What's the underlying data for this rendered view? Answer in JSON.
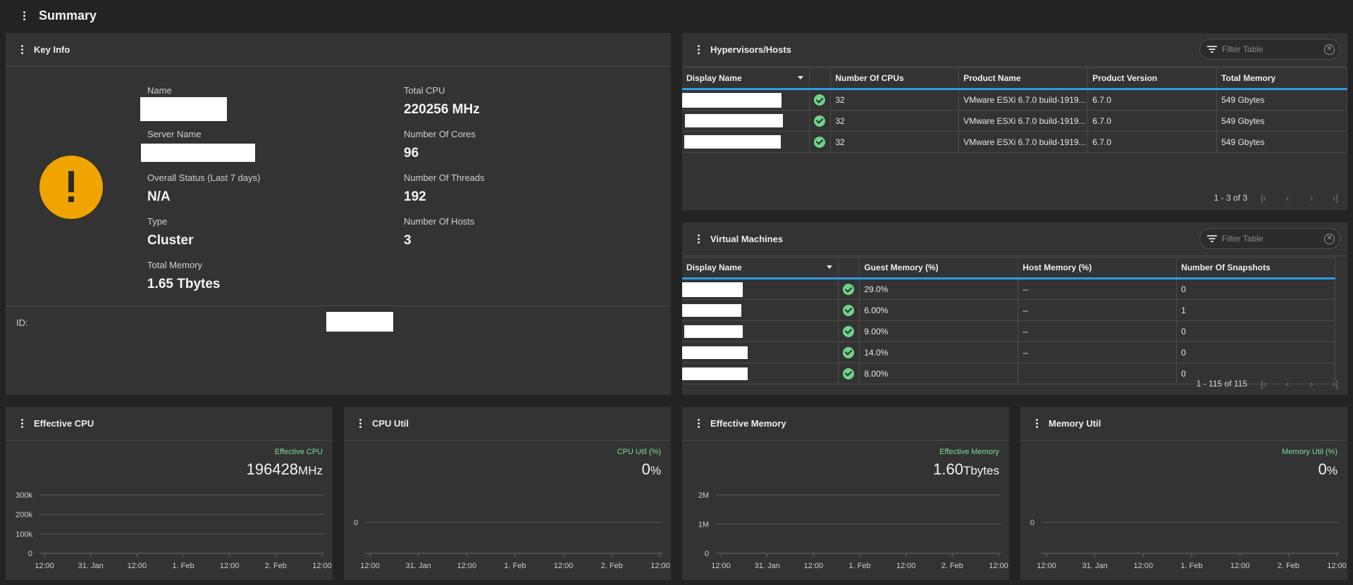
{
  "page": {
    "title": "Summary"
  },
  "key_info": {
    "title": "Key Info",
    "name_label": "Name",
    "server_name_label": "Server Name",
    "status_label": "Overall Status (Last 7 days)",
    "status_value": "N/A",
    "type_label": "Type",
    "type_value": "Cluster",
    "memory_label": "Total Memory",
    "memory_value": "1.65 Tbytes",
    "total_cpu_label": "Total CPU",
    "total_cpu_value": "220256 MHz",
    "cores_label": "Number Of Cores",
    "cores_value": "96",
    "threads_label": "Number Of Threads",
    "threads_value": "192",
    "hosts_label": "Number Of Hosts",
    "hosts_value": "3",
    "id_label": "ID:"
  },
  "hosts": {
    "title": "Hypervisors/Hosts",
    "filter_placeholder": "Filter Table",
    "columns": [
      "Display Name",
      "Number Of CPUs",
      "Product Name",
      "Product Version",
      "Total Memory"
    ],
    "rows": [
      {
        "cpus": "32",
        "product": "VMware ESXi 6.7.0 build-1919...",
        "version": "6.7.0",
        "memory": "549 Gbytes"
      },
      {
        "cpus": "32",
        "product": "VMware ESXi 6.7.0 build-1919...",
        "version": "6.7.0",
        "memory": "549 Gbytes"
      },
      {
        "cpus": "32",
        "product": "VMware ESXi 6.7.0 build-1919...",
        "version": "6.7.0",
        "memory": "549 Gbytes"
      }
    ],
    "pager": "1 - 3 of 3"
  },
  "vms": {
    "title": "Virtual Machines",
    "filter_placeholder": "Filter Table",
    "columns": [
      "Display Name",
      "Guest Memory (%)",
      "Host Memory (%)",
      "Number Of Snapshots"
    ],
    "rows": [
      {
        "guest": "29.0%",
        "host": "--",
        "snapshots": "0"
      },
      {
        "guest": "6.00%",
        "host": "--",
        "snapshots": "1"
      },
      {
        "guest": "9.00%",
        "host": "--",
        "snapshots": "0"
      },
      {
        "guest": "14.0%",
        "host": "--",
        "snapshots": "0"
      },
      {
        "guest": "8.00%",
        "host": "",
        "snapshots": "0"
      }
    ],
    "pager": "1 - 115 of 115"
  },
  "metrics": [
    {
      "title": "Effective CPU",
      "legend": "Effective CPU",
      "value": "196428",
      "unit": "MHz",
      "y_ticks": [
        "300k",
        "200k",
        "100k",
        "0"
      ],
      "chart_data": {
        "type": "line",
        "ylim": [
          0,
          300000
        ],
        "x_ticks": [
          "12:00",
          "31. Jan",
          "12:00",
          "1. Feb",
          "12:00",
          "2. Feb",
          "12:00"
        ]
      }
    },
    {
      "title": "CPU Util",
      "legend": "CPU Util (%)",
      "value": "0",
      "unit": "%",
      "y_ticks": [
        "0"
      ],
      "chart_data": {
        "type": "line",
        "x_ticks": [
          "12:00",
          "31. Jan",
          "12:00",
          "1. Feb",
          "12:00",
          "2. Feb",
          "12:00"
        ]
      }
    },
    {
      "title": "Effective Memory",
      "legend": "Effective Memory",
      "value": "1.60",
      "unit": "Tbytes",
      "y_ticks": [
        "2M",
        "1M",
        "0"
      ],
      "chart_data": {
        "type": "line",
        "ylim": [
          0,
          2000000
        ],
        "x_ticks": [
          "12:00",
          "31. Jan",
          "12:00",
          "1. Feb",
          "12:00",
          "2. Feb",
          "12:00"
        ]
      }
    },
    {
      "title": "Memory Util",
      "legend": "Memory Util (%)",
      "value": "0",
      "unit": "%",
      "y_ticks": [
        "0"
      ],
      "chart_data": {
        "type": "line",
        "x_ticks": [
          "12:00",
          "31. Jan",
          "12:00",
          "1. Feb",
          "12:00",
          "2. Feb",
          "12:00"
        ]
      }
    }
  ],
  "colors": {
    "background": "#232323",
    "panel": "#333333",
    "accent": "#2f9ae6",
    "status_ok": "#6fd38a",
    "warning": "#f0a400",
    "metric_label": "#7ddc9b"
  },
  "icons": {
    "menu": "more-vert-icon",
    "warning": "exclamation-icon",
    "status": "check-circle-icon",
    "filter": "filter-icon",
    "clear": "clear-icon"
  }
}
